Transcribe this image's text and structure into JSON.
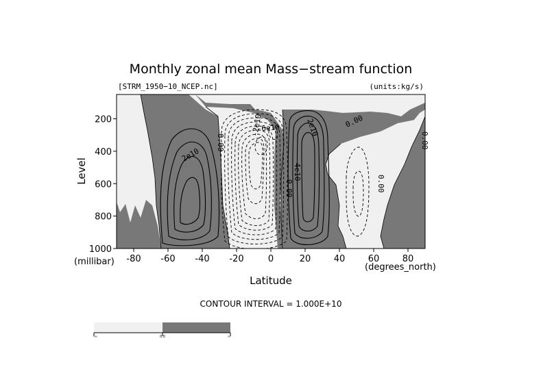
{
  "chart_data": {
    "type": "contour",
    "title": "Monthly zonal mean Mass−stream function",
    "file_label": "[STRM_1950−10_NCEP.nc]",
    "units_label": "(units:kg/s)",
    "xlabel": "Latitude",
    "ylabel": "Level",
    "x_units": "(degrees_north)",
    "y_units": "(millibar)",
    "xlim": [
      -90,
      90
    ],
    "ylim": [
      1000,
      50
    ],
    "y_inverted": true,
    "x_ticks": [
      -80,
      -60,
      -40,
      -20,
      0,
      20,
      40,
      60,
      80
    ],
    "y_ticks": [
      200,
      400,
      600,
      800,
      1000
    ],
    "contour_interval_text": "CONTOUR INTERVAL = 1.000E+10",
    "shading": {
      "negative_color": "#f0f0f0",
      "positive_color": "#787878",
      "colorbar_labels": [
        "-∞",
        "0.0",
        "∞"
      ]
    },
    "cells": [
      {
        "name": "southern-positive-cell",
        "sign": "positive",
        "lat_center": -45,
        "lev_center": 680,
        "contours": 4
      },
      {
        "name": "tropical-negative-cell",
        "sign": "negative",
        "lat_center": -8,
        "lev_center": 600,
        "contours": 11
      },
      {
        "name": "northern-positive-cell",
        "sign": "positive",
        "lat_center": 20,
        "lev_center": 520,
        "contours": 4
      },
      {
        "name": "northern-negative-cell",
        "sign": "negative",
        "lat_center": 52,
        "lev_center": 620,
        "contours": 2
      }
    ],
    "contour_labels": [
      "2e10",
      "0.00",
      "-2e10",
      "-6e10",
      "2e10",
      "4e10",
      "0.00",
      "0.00",
      "0.00",
      "0.00"
    ]
  }
}
